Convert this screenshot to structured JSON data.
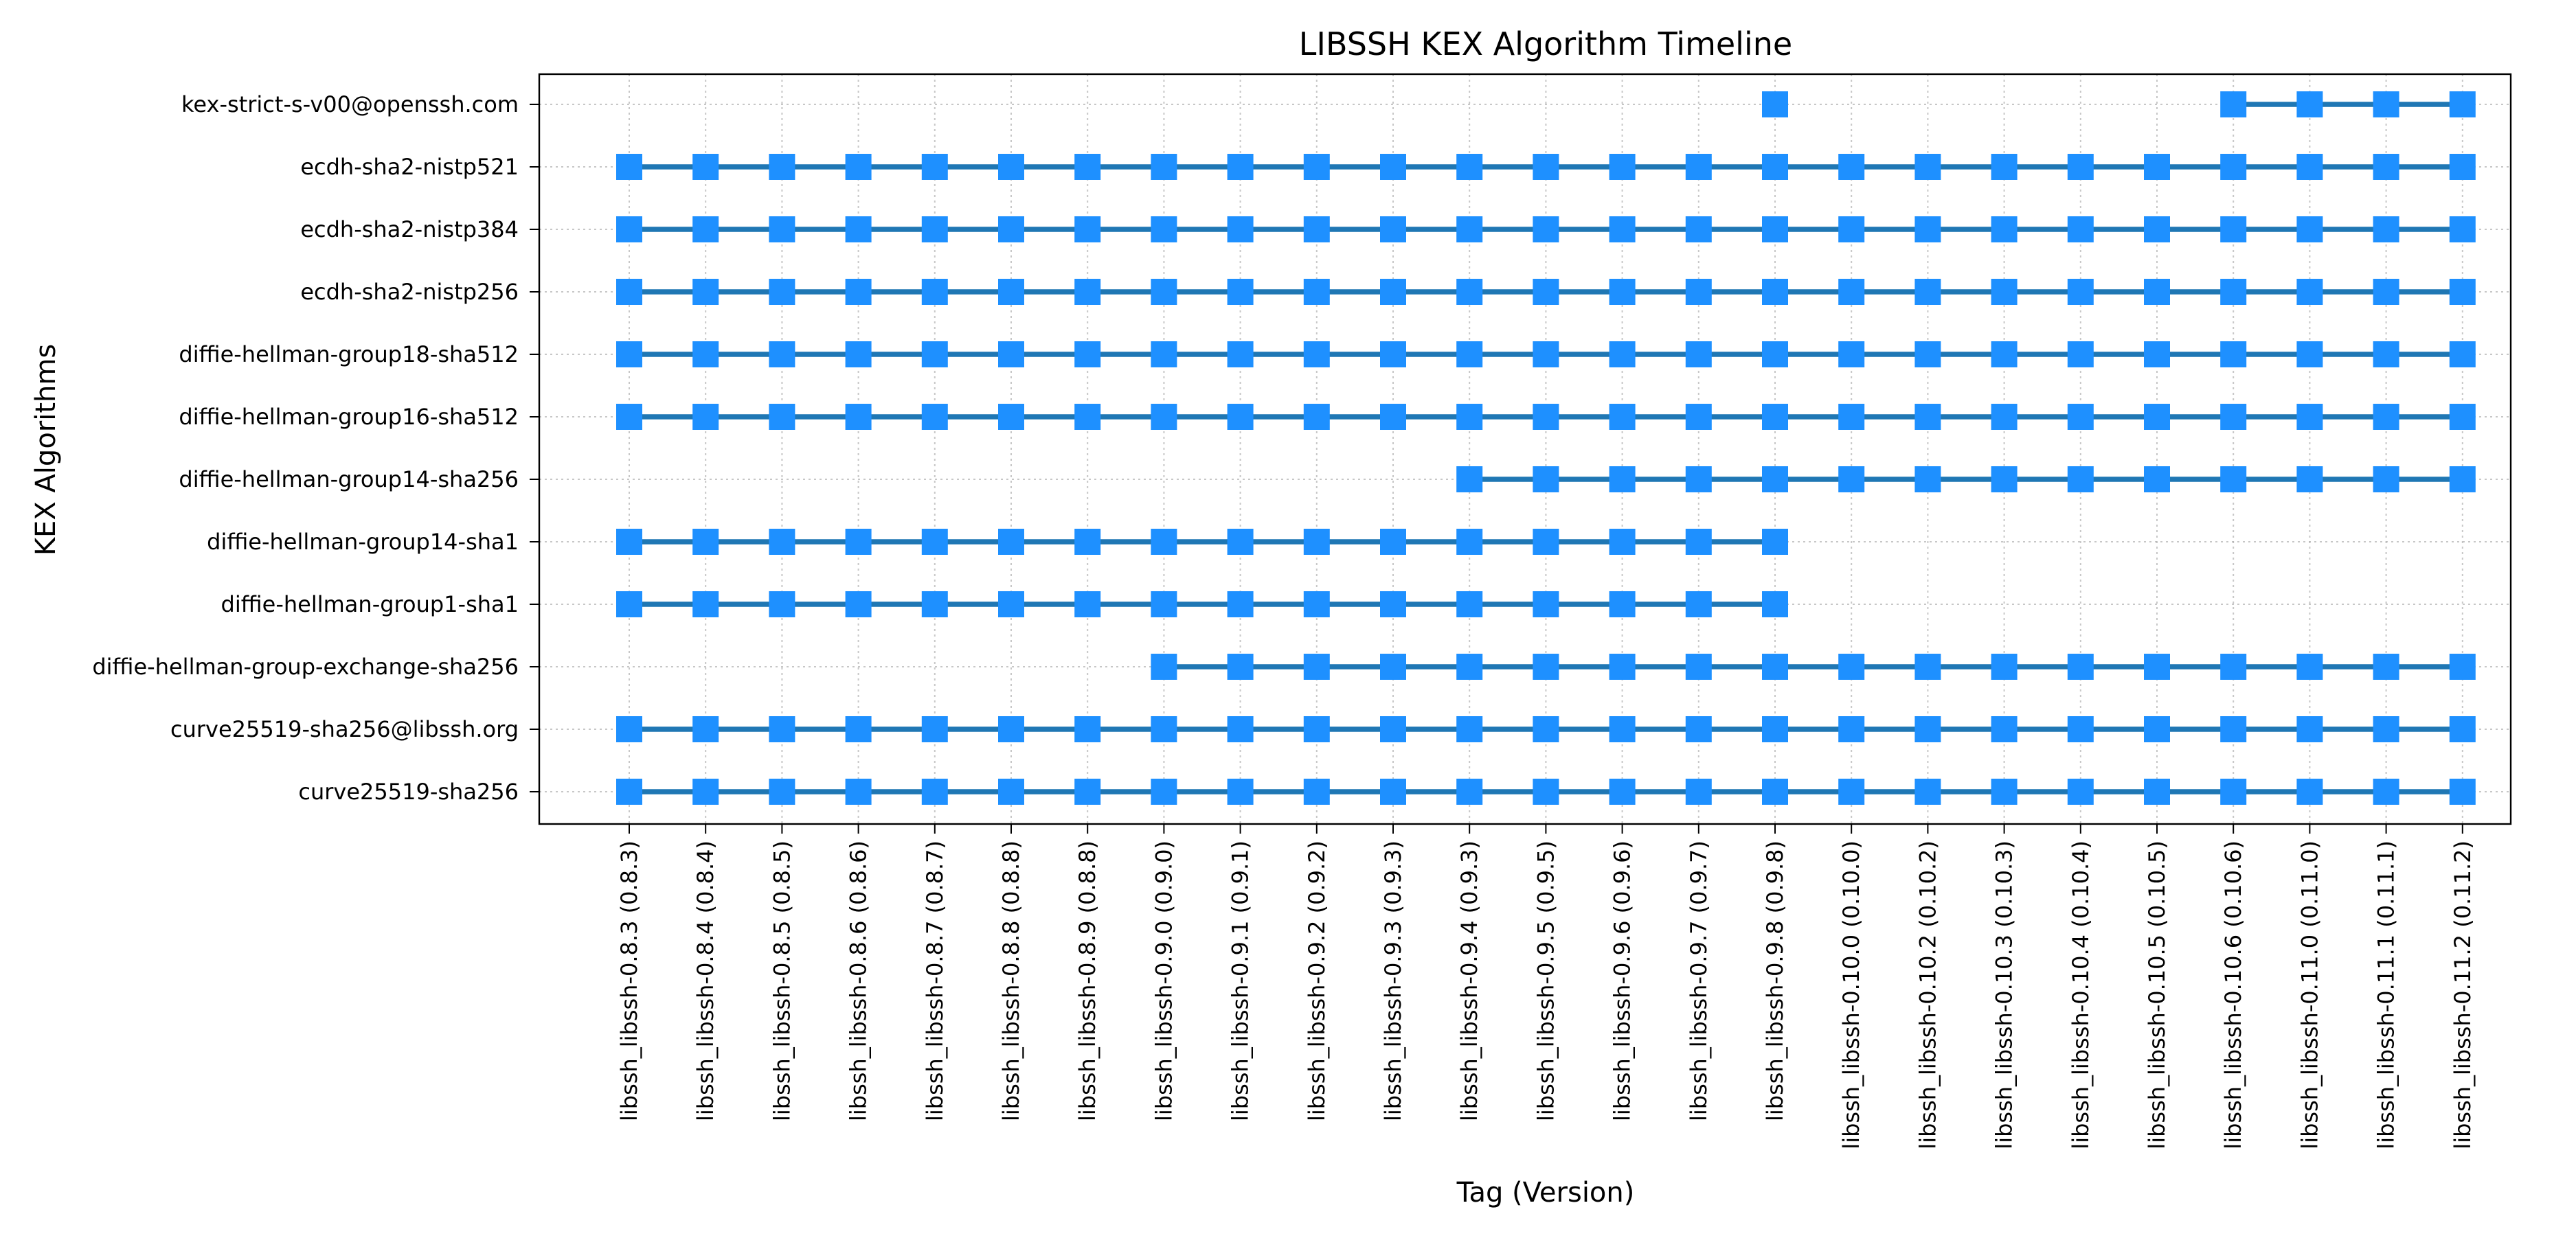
{
  "chart_data": {
    "type": "timeline",
    "title": "LIBSSH KEX Algorithm Timeline",
    "xlabel": "Tag (Version)",
    "ylabel": "KEX Algorithms",
    "grid": true,
    "colors": {
      "line": "#1f77b4",
      "marker": "#1e90ff"
    },
    "categories": [
      "libssh_libssh-0.8.3 (0.8.3)",
      "libssh_libssh-0.8.4 (0.8.4)",
      "libssh_libssh-0.8.5 (0.8.5)",
      "libssh_libssh-0.8.6 (0.8.6)",
      "libssh_libssh-0.8.7 (0.8.7)",
      "libssh_libssh-0.8.8 (0.8.8)",
      "libssh_libssh-0.8.9 (0.8.8)",
      "libssh_libssh-0.9.0 (0.9.0)",
      "libssh_libssh-0.9.1 (0.9.1)",
      "libssh_libssh-0.9.2 (0.9.2)",
      "libssh_libssh-0.9.3 (0.9.3)",
      "libssh_libssh-0.9.4 (0.9.3)",
      "libssh_libssh-0.9.5 (0.9.5)",
      "libssh_libssh-0.9.6 (0.9.6)",
      "libssh_libssh-0.9.7 (0.9.7)",
      "libssh_libssh-0.9.8 (0.9.8)",
      "libssh_libssh-0.10.0 (0.10.0)",
      "libssh_libssh-0.10.2 (0.10.2)",
      "libssh_libssh-0.10.3 (0.10.3)",
      "libssh_libssh-0.10.4 (0.10.4)",
      "libssh_libssh-0.10.5 (0.10.5)",
      "libssh_libssh-0.10.6 (0.10.6)",
      "libssh_libssh-0.11.0 (0.11.0)",
      "libssh_libssh-0.11.1 (0.11.1)",
      "libssh_libssh-0.11.2 (0.11.2)"
    ],
    "series": [
      {
        "name": "curve25519-sha256",
        "present": [
          0,
          1,
          2,
          3,
          4,
          5,
          6,
          7,
          8,
          9,
          10,
          11,
          12,
          13,
          14,
          15,
          16,
          17,
          18,
          19,
          20,
          21,
          22,
          23,
          24
        ]
      },
      {
        "name": "curve25519-sha256@libssh.org",
        "present": [
          0,
          1,
          2,
          3,
          4,
          5,
          6,
          7,
          8,
          9,
          10,
          11,
          12,
          13,
          14,
          15,
          16,
          17,
          18,
          19,
          20,
          21,
          22,
          23,
          24
        ]
      },
      {
        "name": "diffie-hellman-group-exchange-sha256",
        "present": [
          7,
          8,
          9,
          10,
          11,
          12,
          13,
          14,
          15,
          16,
          17,
          18,
          19,
          20,
          21,
          22,
          23,
          24
        ]
      },
      {
        "name": "diffie-hellman-group1-sha1",
        "present": [
          0,
          1,
          2,
          3,
          4,
          5,
          6,
          7,
          8,
          9,
          10,
          11,
          12,
          13,
          14,
          15
        ]
      },
      {
        "name": "diffie-hellman-group14-sha1",
        "present": [
          0,
          1,
          2,
          3,
          4,
          5,
          6,
          7,
          8,
          9,
          10,
          11,
          12,
          13,
          14,
          15
        ]
      },
      {
        "name": "diffie-hellman-group14-sha256",
        "present": [
          11,
          12,
          13,
          14,
          15,
          16,
          17,
          18,
          19,
          20,
          21,
          22,
          23,
          24
        ]
      },
      {
        "name": "diffie-hellman-group16-sha512",
        "present": [
          0,
          1,
          2,
          3,
          4,
          5,
          6,
          7,
          8,
          9,
          10,
          11,
          12,
          13,
          14,
          15,
          16,
          17,
          18,
          19,
          20,
          21,
          22,
          23,
          24
        ]
      },
      {
        "name": "diffie-hellman-group18-sha512",
        "present": [
          0,
          1,
          2,
          3,
          4,
          5,
          6,
          7,
          8,
          9,
          10,
          11,
          12,
          13,
          14,
          15,
          16,
          17,
          18,
          19,
          20,
          21,
          22,
          23,
          24
        ]
      },
      {
        "name": "ecdh-sha2-nistp256",
        "present": [
          0,
          1,
          2,
          3,
          4,
          5,
          6,
          7,
          8,
          9,
          10,
          11,
          12,
          13,
          14,
          15,
          16,
          17,
          18,
          19,
          20,
          21,
          22,
          23,
          24
        ]
      },
      {
        "name": "ecdh-sha2-nistp384",
        "present": [
          0,
          1,
          2,
          3,
          4,
          5,
          6,
          7,
          8,
          9,
          10,
          11,
          12,
          13,
          14,
          15,
          16,
          17,
          18,
          19,
          20,
          21,
          22,
          23,
          24
        ]
      },
      {
        "name": "ecdh-sha2-nistp521",
        "present": [
          0,
          1,
          2,
          3,
          4,
          5,
          6,
          7,
          8,
          9,
          10,
          11,
          12,
          13,
          14,
          15,
          16,
          17,
          18,
          19,
          20,
          21,
          22,
          23,
          24
        ]
      },
      {
        "name": "kex-strict-s-v00@openssh.com",
        "present": [
          15,
          21,
          22,
          23,
          24
        ]
      }
    ]
  }
}
